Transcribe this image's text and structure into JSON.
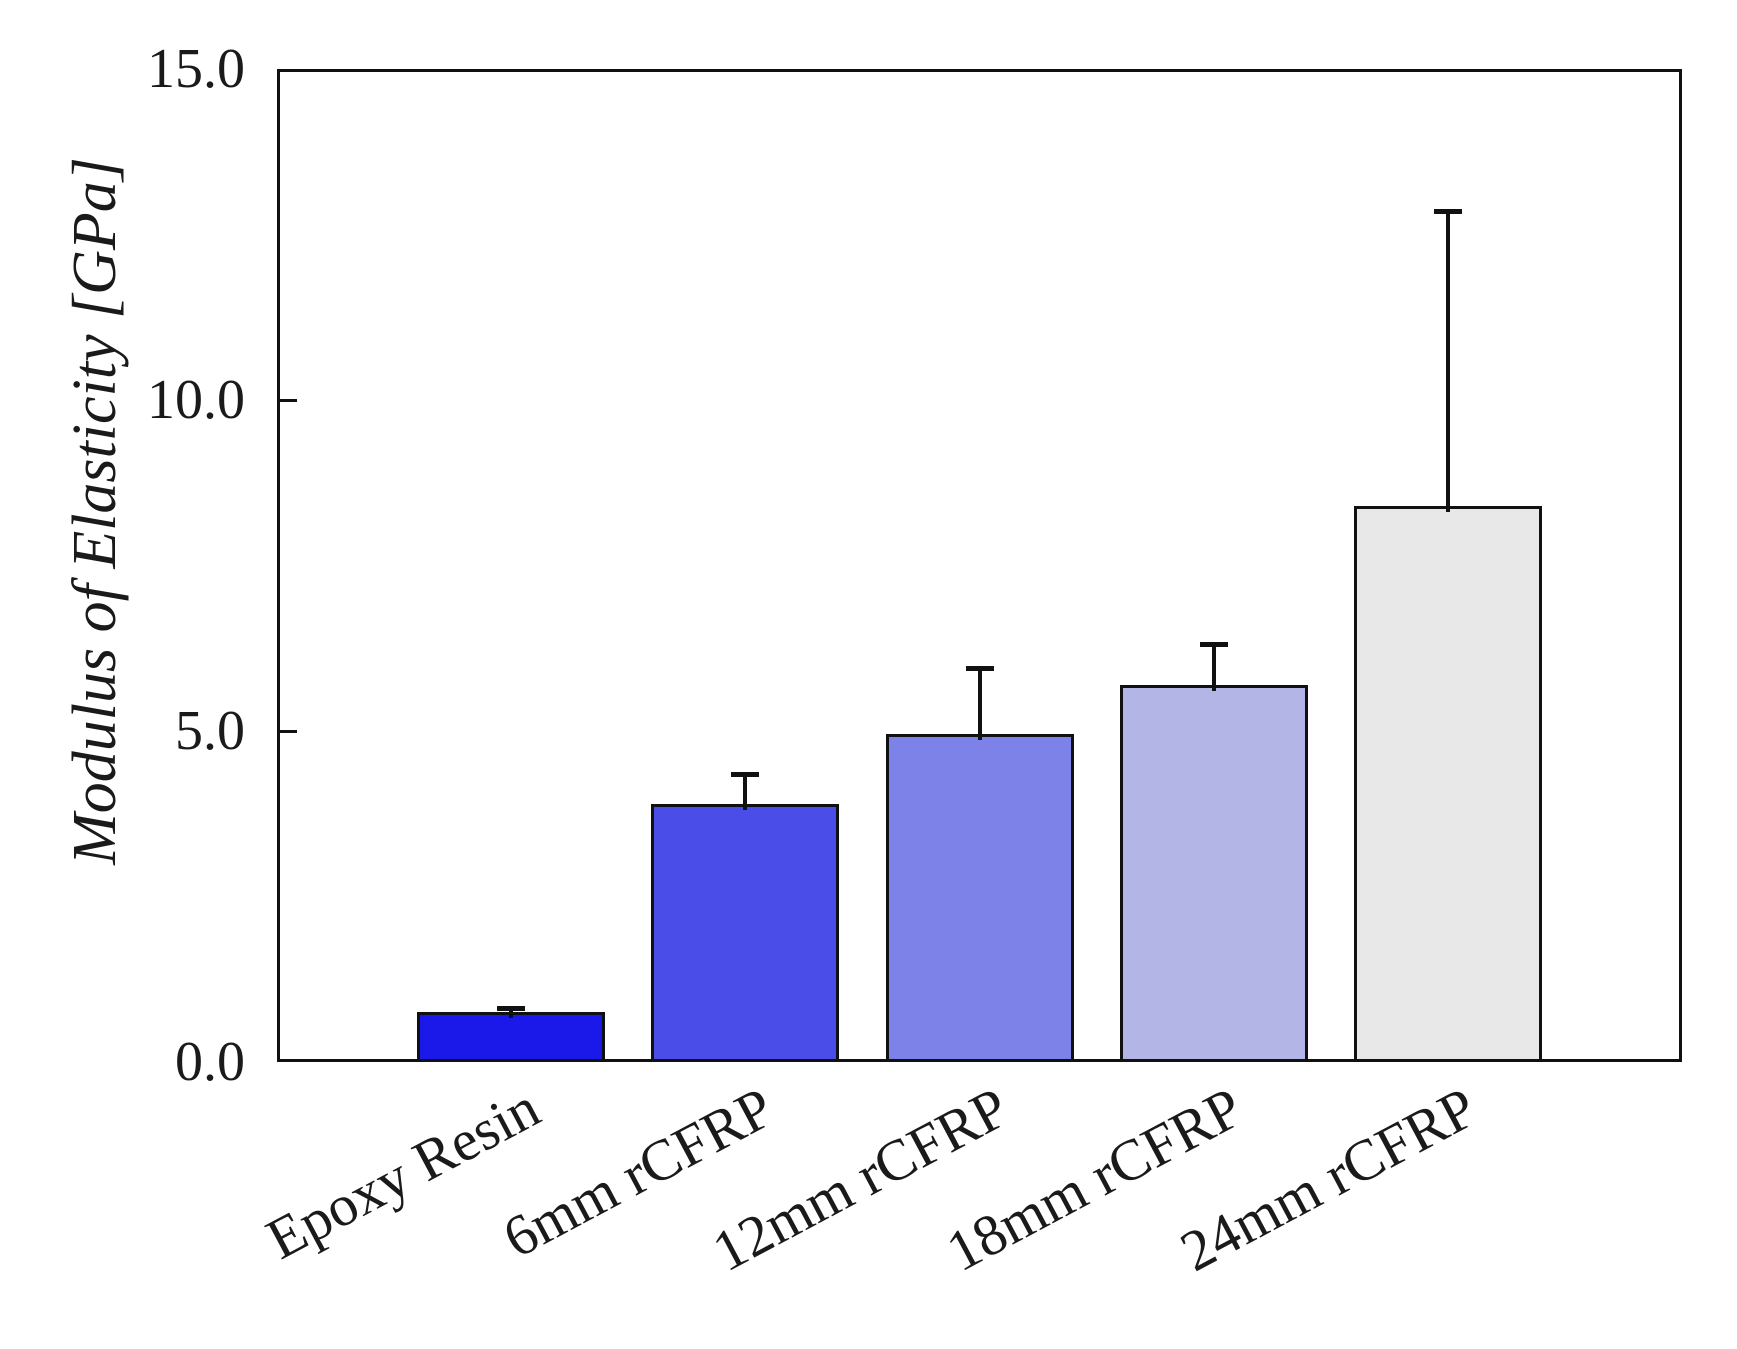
{
  "chart_data": {
    "type": "bar",
    "title": "",
    "xlabel": "",
    "ylabel": "Modulus of Elasticity [GPa]",
    "categories": [
      "Epoxy Resin",
      "6mm rCFRP",
      "12mm rCFRP",
      "18mm rCFRP",
      "24mm rCFRP"
    ],
    "values": [
      0.75,
      3.9,
      4.95,
      5.7,
      8.4
    ],
    "errors_upper": [
      0.06,
      0.45,
      1.0,
      0.6,
      4.45
    ],
    "bar_colors": [
      "#1b19e9",
      "#4a4de8",
      "#7d82e8",
      "#b3b5e6",
      "#e8e8e8"
    ],
    "bar_edge_color": "#111111",
    "error_bar_color": "#111111",
    "ylim": [
      0,
      15
    ],
    "yticks": [
      0,
      5,
      10,
      15
    ],
    "ytick_labels": [
      "0.0",
      "5.0",
      "10.0",
      "15.0"
    ],
    "grid": "off",
    "legend": "none",
    "background_color": "#ffffff",
    "tick_direction": "in"
  }
}
